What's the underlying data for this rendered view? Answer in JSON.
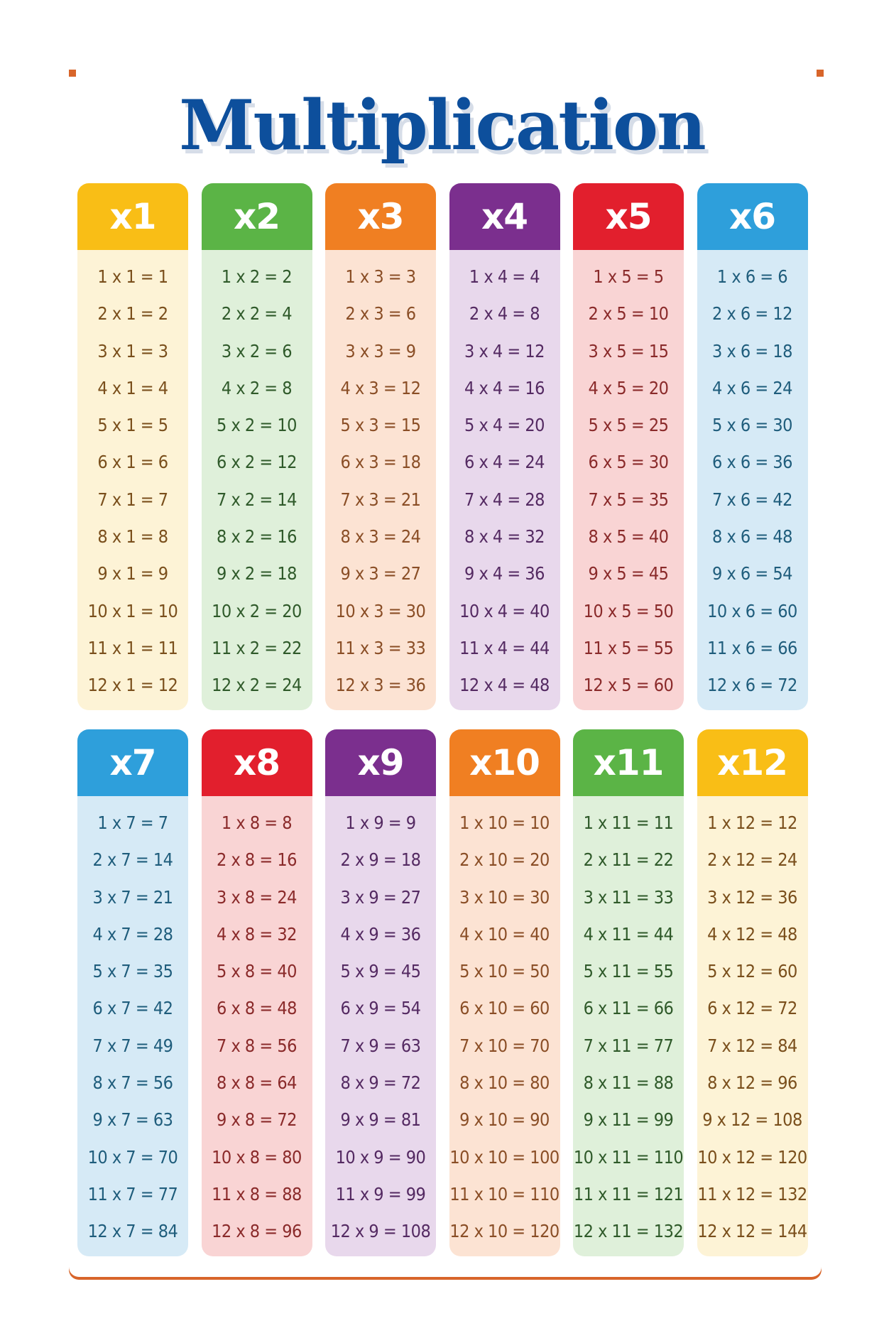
{
  "title": "Multiplication",
  "tables": [
    {
      "header": "x1",
      "color": "#F9BE16",
      "bg": "#FDF3D6",
      "text": "#7a4f1c",
      "rows": [
        "1 x 1 = 1",
        "2 x 1 = 2",
        "3 x 1 = 3",
        "4 x 1 = 4",
        "5 x 1 = 5",
        "6 x 1 = 6",
        "7 x 1 = 7",
        "8 x 1 = 8",
        "9 x 1 = 9",
        "10 x 1 = 10",
        "11 x 1 = 11",
        "12 x 1 = 12"
      ]
    },
    {
      "header": "x2",
      "color": "#5BB446",
      "bg": "#DFF0DA",
      "text": "#2f5a2a",
      "rows": [
        "1 x 2 = 2",
        "2 x 2 = 4",
        "3 x 2 = 6",
        "4 x 2 = 8",
        "5 x 2 = 10",
        "6 x 2 = 12",
        "7 x 2 = 14",
        "8 x 2 = 16",
        "9 x 2 = 18",
        "10 x 2 = 20",
        "11 x 2 = 22",
        "12 x 2 = 24"
      ]
    },
    {
      "header": "x3",
      "color": "#F07F22",
      "bg": "#FCE3D3",
      "text": "#8a4e26",
      "rows": [
        "1 x 3 = 3",
        "2 x 3 = 6",
        "3 x 3 = 9",
        "4 x 3 = 12",
        "5 x 3 = 15",
        "6 x 3 = 18",
        "7 x 3 = 21",
        "8 x 3 = 24",
        "9 x 3 = 27",
        "10 x 3 = 30",
        "11 x 3 = 33",
        "12 x 3 = 36"
      ]
    },
    {
      "header": "x4",
      "color": "#7B2F8E",
      "bg": "#E8D8EC",
      "text": "#542a62",
      "rows": [
        "1 x 4 = 4",
        "2 x 4 = 8",
        "3 x 4 = 12",
        "4 x 4 = 16",
        "5 x 4 = 20",
        "6 x 4 = 24",
        "7 x 4 = 28",
        "8 x 4 = 32",
        "9 x 4 = 36",
        "10 x 4 = 40",
        "11 x 4 = 44",
        "12 x 4 = 48"
      ]
    },
    {
      "header": "x5",
      "color": "#E21F2D",
      "bg": "#F9D4D4",
      "text": "#8a2a2a",
      "rows": [
        "1 x 5 = 5",
        "2 x 5 = 10",
        "3 x 5 = 15",
        "4 x 5 = 20",
        "5 x 5 = 25",
        "6 x 5 = 30",
        "7 x 5 = 35",
        "8 x 5 = 40",
        "9 x 5 = 45",
        "10 x 5 = 50",
        "11 x 5 = 55",
        "12 x 5 = 60"
      ]
    },
    {
      "header": "x6",
      "color": "#2E9FDB",
      "bg": "#D6EAF6",
      "text": "#1f5d7c",
      "rows": [
        "1 x 6 = 6",
        "2 x 6 = 12",
        "3 x 6 = 18",
        "4 x 6 = 24",
        "5 x 6 = 30",
        "6 x 6 = 36",
        "7 x 6 = 42",
        "8 x 6 = 48",
        "9 x 6 = 54",
        "10 x 6 = 60",
        "11 x 6 = 66",
        "12 x 6 = 72"
      ]
    },
    {
      "header": "x7",
      "color": "#2E9FDB",
      "bg": "#D6EAF6",
      "text": "#1f5d7c",
      "rows": [
        "1 x 7 = 7",
        "2 x 7 = 14",
        "3 x 7 = 21",
        "4 x 7 = 28",
        "5 x 7 = 35",
        "6 x 7 = 42",
        "7 x 7 = 49",
        "8 x 7 = 56",
        "9 x 7 = 63",
        "10 x 7 = 70",
        "11 x 7 = 77",
        "12 x 7 = 84"
      ]
    },
    {
      "header": "x8",
      "color": "#E21F2D",
      "bg": "#F9D4D4",
      "text": "#8a2a2a",
      "rows": [
        "1 x 8 = 8",
        "2 x 8 = 16",
        "3 x 8 = 24",
        "4 x 8 = 32",
        "5 x 8 = 40",
        "6 x 8 = 48",
        "7 x 8 = 56",
        "8 x 8 = 64",
        "9 x 8 = 72",
        "10 x 8 = 80",
        "11 x 8 = 88",
        "12 x 8 = 96"
      ]
    },
    {
      "header": "x9",
      "color": "#7B2F8E",
      "bg": "#E8D8EC",
      "text": "#542a62",
      "rows": [
        "1 x 9 = 9",
        "2 x 9 = 18",
        "3 x 9 = 27",
        "4 x 9 = 36",
        "5 x 9 = 45",
        "6 x 9 = 54",
        "7 x 9 = 63",
        "8 x 9 = 72",
        "9 x 9 = 81",
        "10 x 9 = 90",
        "11 x 9 = 99",
        "12 x 9 = 108"
      ]
    },
    {
      "header": "x10",
      "color": "#F07F22",
      "bg": "#FCE3D3",
      "text": "#8a4e26",
      "rows": [
        "1 x 10 = 10",
        "2 x 10 = 20",
        "3 x 10 = 30",
        "4 x 10 = 40",
        "5 x 10 = 50",
        "6 x 10 = 60",
        "7 x 10 = 70",
        "8 x 10 = 80",
        "9 x 10 = 90",
        "10 x 10 = 100",
        "11 x 10 = 110",
        "12 x 10 = 120"
      ]
    },
    {
      "header": "x11",
      "color": "#5BB446",
      "bg": "#DFF0DA",
      "text": "#2f5a2a",
      "rows": [
        "1 x 11 = 11",
        "2 x 11 = 22",
        "3 x 11 = 33",
        "4 x 11 = 44",
        "5 x 11 = 55",
        "6 x 11 = 66",
        "7 x 11 = 77",
        "8 x 11 = 88",
        "9 x 11 = 99",
        "10 x 11 = 110",
        "11 x 11 = 121",
        "12 x 11 = 132"
      ]
    },
    {
      "header": "x12",
      "color": "#F9BE16",
      "bg": "#FDF3D6",
      "text": "#7a4f1c",
      "rows": [
        "1 x 12 = 12",
        "2 x 12 = 24",
        "3 x 12 = 36",
        "4 x 12 = 48",
        "5 x 12 = 60",
        "6 x 12 = 72",
        "7 x 12 = 84",
        "8 x 12 = 96",
        "9 x 12 = 108",
        "10 x 12 = 120",
        "11 x 12 = 132",
        "12 x 12 = 144"
      ]
    }
  ]
}
